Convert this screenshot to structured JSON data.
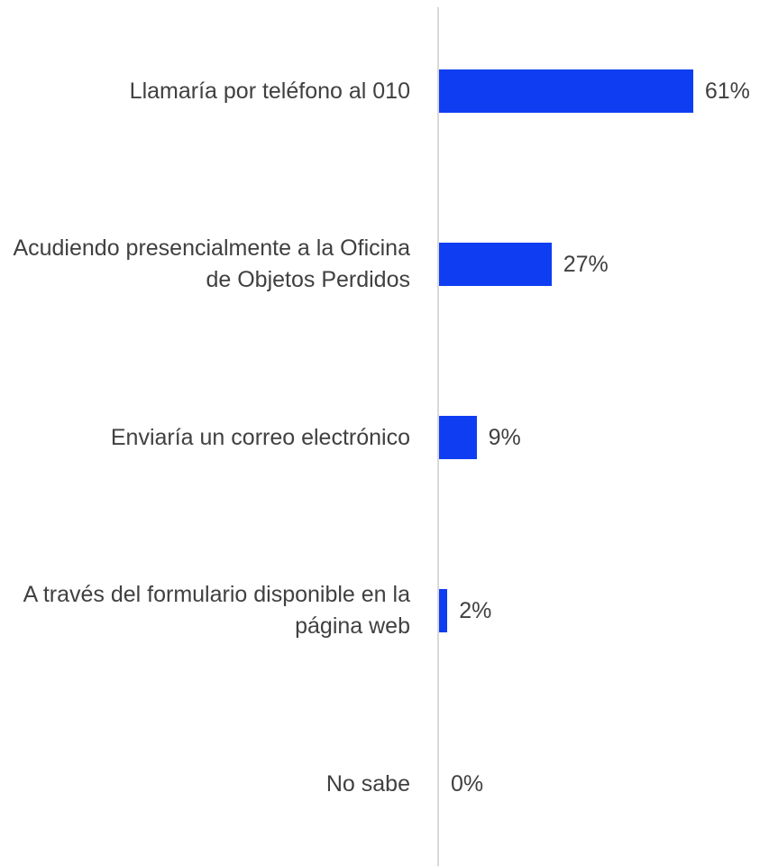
{
  "chart_data": {
    "type": "bar",
    "orientation": "horizontal",
    "categories": [
      "Llamaría por teléfono al 010",
      "Acudiendo presencialmente a la Oficina de Objetos Perdidos",
      "Enviaría un correo electrónico",
      "A través del formulario disponible en la página web",
      "No sabe"
    ],
    "values": [
      61,
      27,
      9,
      2,
      0
    ],
    "value_labels": [
      "61%",
      "27%",
      "9%",
      "2%",
      "0%"
    ],
    "color": "#0f3ef2"
  }
}
